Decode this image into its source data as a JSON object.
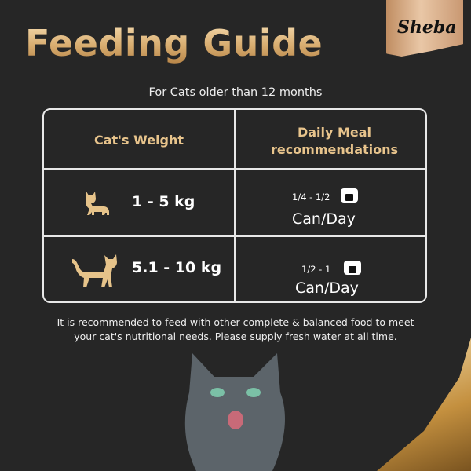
{
  "title": "Feeding Guide",
  "brand": "Sheba",
  "subtitle": "For Cats older than 12 months",
  "table": {
    "headers": [
      "Cat's Weight",
      "Daily Meal recommendations"
    ],
    "rows": [
      {
        "weight": "1 - 5 kg",
        "amount": "1/4 - 1/2",
        "unit": "Can/Day"
      },
      {
        "weight": "5.1 - 10 kg",
        "amount": "1/2 - 1",
        "unit": "Can/Day"
      }
    ]
  },
  "note_line1": "It is recommended to feed with other complete & balanced food to meet",
  "note_line2": "your cat's nutritional needs. Please supply fresh water at all time.",
  "colors": {
    "background": "#262626",
    "gold": "#e8c48c",
    "border": "#e8e8e8"
  }
}
